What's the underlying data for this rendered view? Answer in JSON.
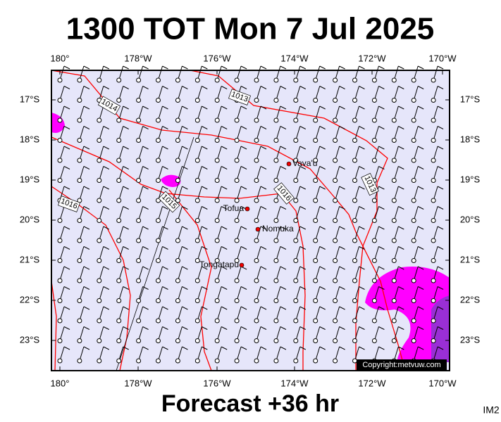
{
  "header": {
    "title": "1300 TOT Mon 7 Jul 2025"
  },
  "map": {
    "lon_labels": [
      "180°",
      "178°W",
      "176°W",
      "174°W",
      "172°W",
      "170°W"
    ],
    "lat_labels": [
      "17°S",
      "18°S",
      "19°S",
      "20°S",
      "21°S",
      "22°S",
      "23°S"
    ],
    "places": [
      "Vava'u",
      "Tofua",
      "Nomuka",
      "Tongatapu"
    ],
    "isobar_labels": [
      "1014",
      "1013",
      "1016",
      "1013",
      "1016",
      "1015"
    ],
    "copyright": "Copyright:metvuw.com"
  },
  "footer": {
    "forecast": "Forecast +36 hr",
    "code": "IM2"
  }
}
